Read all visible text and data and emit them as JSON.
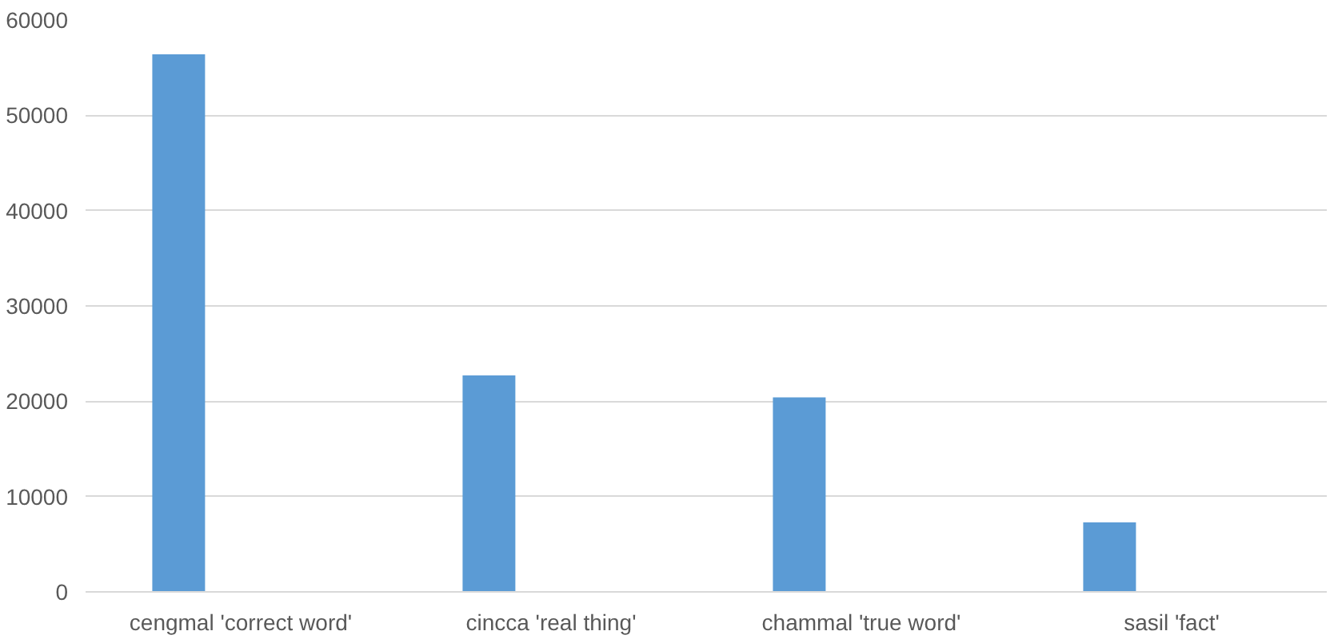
{
  "chart_data": {
    "type": "bar",
    "categories": [
      "cengmal 'correct word'",
      "cincca 'real thing'",
      "chammal 'true word'",
      "sasil 'fact'"
    ],
    "values": [
      56400,
      22700,
      20400,
      7300
    ],
    "color": "#5b9bd5",
    "ylim": [
      0,
      60000
    ],
    "yticks": [
      0,
      10000,
      20000,
      30000,
      40000,
      50000,
      60000
    ],
    "grid": "y"
  }
}
